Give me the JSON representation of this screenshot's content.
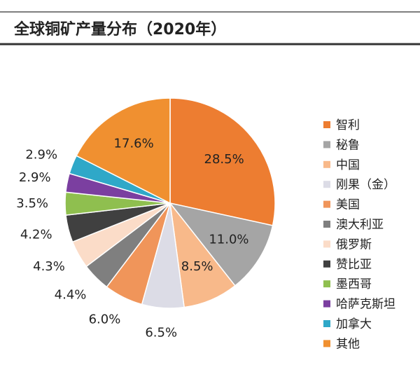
{
  "chart_data": {
    "type": "pie",
    "title": "全球铜矿产量分布（2020年）",
    "categories": [
      "智利",
      "秘鲁",
      "中国",
      "刚果（金）",
      "美国",
      "澳大利亚",
      "俄罗斯",
      "赞比亚",
      "墨西哥",
      "哈萨克斯坦",
      "加拿大",
      "其他"
    ],
    "values": [
      28.5,
      11,
      8.5,
      6.5,
      6,
      4.4,
      4.3,
      4.2,
      3.5,
      2.9,
      2.9,
      17.6
    ],
    "value_labels": [
      "28.5%",
      "11.0%",
      "8.5%",
      "6.5%",
      "6.0%",
      "4.4%",
      "4.3%",
      "4.2%",
      "3.5%",
      "2.9%",
      "2.9%",
      "17.6%"
    ],
    "colors": [
      "#ed7d31",
      "#a5a5a5",
      "#f8b98a",
      "#dcdce6",
      "#f0955a",
      "#7f7f7f",
      "#fbdcc8",
      "#404040",
      "#8fbf4f",
      "#7b3fa0",
      "#2fa8c8",
      "#f09030"
    ],
    "legend": "right"
  }
}
